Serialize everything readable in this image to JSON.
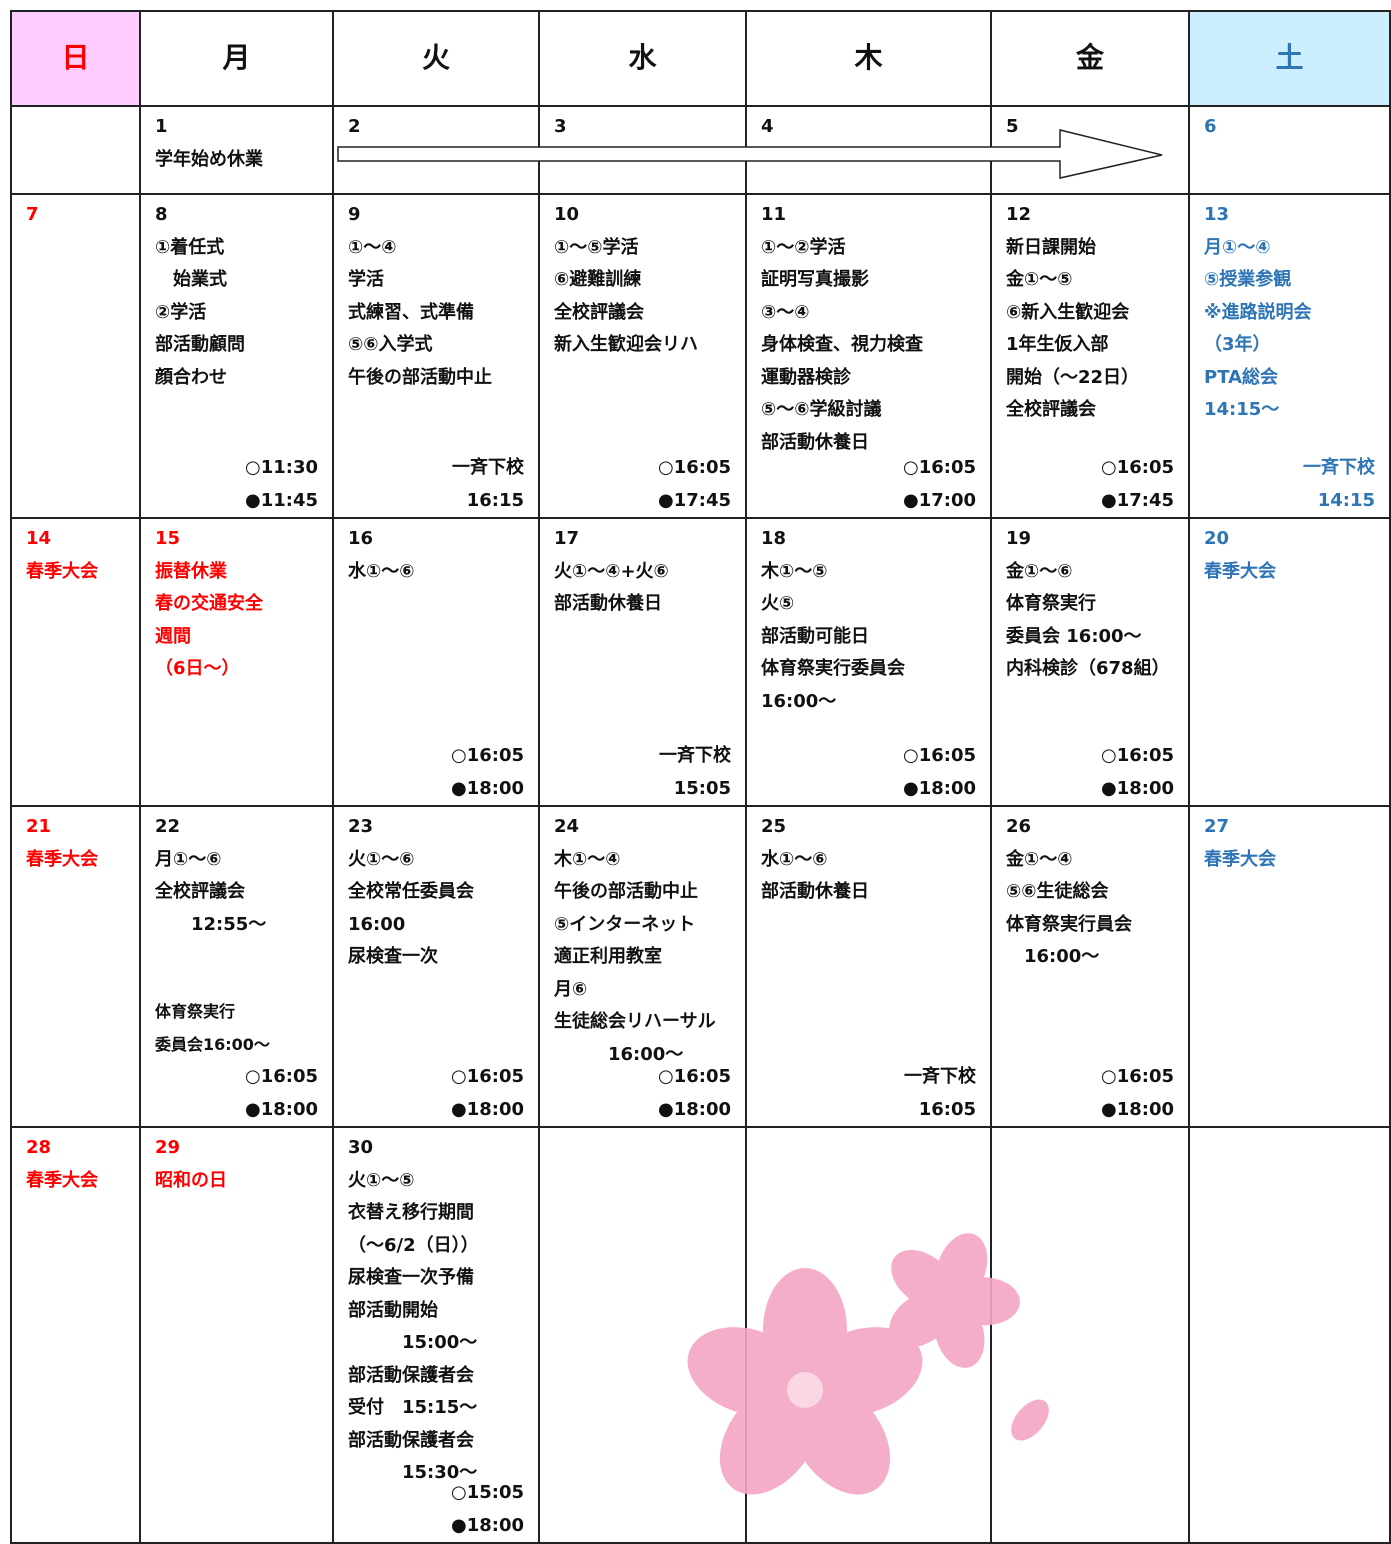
{
  "header": {
    "days": [
      "日",
      "月",
      "火",
      "水",
      "木",
      "金",
      "土"
    ]
  },
  "weeks": [
    [
      null,
      {
        "date": "1",
        "lines": [
          "学年始め休業"
        ]
      },
      {
        "date": "2"
      },
      {
        "date": "3"
      },
      {
        "date": "4"
      },
      {
        "date": "5"
      },
      {
        "date": "6"
      }
    ],
    [
      {
        "date": "7"
      },
      {
        "date": "8",
        "lines": [
          "①着任式",
          "　始業式",
          "②学活",
          "部活動顧問",
          "顔合わせ"
        ],
        "bottom": [
          "○11:30",
          "●11:45"
        ]
      },
      {
        "date": "9",
        "lines": [
          "①〜④",
          "学活",
          "式練習、式準備",
          "⑤⑥入学式",
          "午後の部活動中止"
        ],
        "bottom": [
          "一斉下校",
          "16:15"
        ]
      },
      {
        "date": "10",
        "lines": [
          "①〜⑤学活",
          "⑥避難訓練",
          "全校評議会",
          "新入生歓迎会リハ"
        ],
        "bottom": [
          "○16:05",
          "●17:45"
        ]
      },
      {
        "date": "11",
        "lines": [
          "①〜②学活",
          "証明写真撮影",
          "③〜④",
          "身体検査、視力検査",
          "運動器検診",
          "⑤〜⑥学級討議",
          "部活動休養日"
        ],
        "bottom": [
          "○16:05",
          "●17:00"
        ]
      },
      {
        "date": "12",
        "lines": [
          "新日課開始",
          "金①〜⑤",
          "⑥新入生歓迎会",
          "1年生仮入部",
          "開始（〜22日）",
          "全校評議会"
        ],
        "bottom": [
          "○16:05",
          "●17:45"
        ]
      },
      {
        "date": "13",
        "lines": [
          "月①〜④",
          "⑤授業参観",
          "※進路説明会",
          "（3年）",
          "PTA総会",
          "14:15〜"
        ],
        "bottom": [
          "一斉下校",
          "14:15"
        ]
      }
    ],
    [
      {
        "date": "14",
        "lines": [
          "春季大会"
        ]
      },
      {
        "date": "15",
        "lines": [
          "振替休業",
          "春の交通安全",
          "週間",
          "（6日〜）"
        ],
        "color": "#ff0000"
      },
      {
        "date": "16",
        "lines": [
          "水①〜⑥"
        ],
        "bottom": [
          "○16:05",
          "●18:00"
        ]
      },
      {
        "date": "17",
        "lines": [
          "火①〜④+火⑥",
          "部活動休養日"
        ],
        "bottom": [
          "一斉下校",
          "15:05"
        ]
      },
      {
        "date": "18",
        "lines": [
          "木①〜⑤",
          "火⑤",
          "部活動可能日",
          "体育祭実行委員会",
          "16:00〜"
        ],
        "bottom": [
          "○16:05",
          "●18:00"
        ]
      },
      {
        "date": "19",
        "lines": [
          "金①〜⑥",
          "体育祭実行",
          "委員会 16:00〜",
          "内科検診（678組）"
        ],
        "bottom": [
          "○16:05",
          "●18:00"
        ]
      },
      {
        "date": "20",
        "lines": [
          "春季大会"
        ]
      }
    ],
    [
      {
        "date": "21",
        "lines": [
          "春季大会"
        ]
      },
      {
        "date": "22",
        "lines": [
          "月①〜⑥",
          "全校評議会",
          "　　12:55〜"
        ],
        "lower": [
          "体育祭実行",
          "委員会16:00〜"
        ],
        "bottom": [
          "○16:05",
          "●18:00"
        ]
      },
      {
        "date": "23",
        "lines": [
          "火①〜⑥",
          "全校常任委員会",
          "16:00",
          "尿検査一次"
        ],
        "bottom": [
          "○16:05",
          "●18:00"
        ]
      },
      {
        "date": "24",
        "lines": [
          "木①〜④",
          "午後の部活動中止",
          "⑤インターネット",
          "適正利用教室",
          "月⑥",
          "生徒総会リハーサル",
          "　　　16:00〜"
        ],
        "bottom": [
          "○16:05",
          "●18:00"
        ]
      },
      {
        "date": "25",
        "lines": [
          "水①〜⑥",
          "部活動休養日"
        ],
        "bottom": [
          "一斉下校",
          "16:05"
        ]
      },
      {
        "date": "26",
        "lines": [
          "金①〜④",
          "⑤⑥生徒総会",
          "体育祭実行員会",
          "　16:00〜"
        ],
        "bottom": [
          "○16:05",
          "●18:00"
        ]
      },
      {
        "date": "27",
        "lines": [
          "春季大会"
        ]
      }
    ],
    [
      {
        "date": "28",
        "lines": [
          "春季大会"
        ]
      },
      {
        "date": "29",
        "lines": [
          "昭和の日"
        ],
        "color": "#ff0000"
      },
      {
        "date": "30",
        "lines": [
          "火①〜⑤",
          "衣替え移行期間",
          "（〜6/2（日））",
          "尿検査一次予備",
          "部活動開始",
          "　　　15:00〜",
          "部活動保護者会",
          "受付　15:15〜",
          "部活動保護者会",
          "　　　15:30〜"
        ],
        "bottom": [
          "○15:05",
          "●18:00"
        ]
      },
      null,
      null,
      null,
      null
    ]
  ]
}
